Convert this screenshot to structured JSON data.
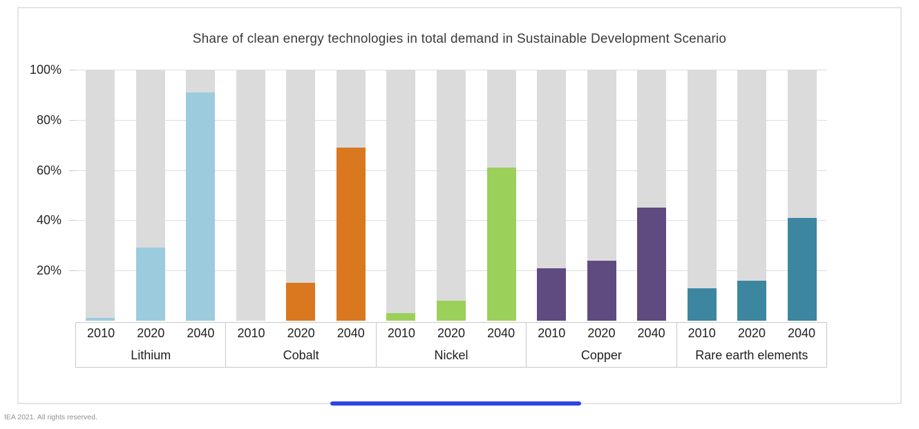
{
  "page": {
    "footer": "IEA 2021. All rights reserved."
  },
  "chart_data": {
    "type": "bar",
    "title": "Share of clean energy technologies in total demand in Sustainable Development Scenario",
    "categories": [
      "Lithium",
      "Cobalt",
      "Nickel",
      "Copper",
      "Rare earth elements"
    ],
    "x_sublabels_per_group": [
      "2010",
      "2020",
      "2040"
    ],
    "unit": "%",
    "ylim": [
      0,
      100
    ],
    "y_tick_labels": [
      "100%",
      "80%",
      "60%",
      "40%",
      "20%"
    ],
    "y_tick_values": [
      100,
      80,
      60,
      40,
      20
    ],
    "grid": true,
    "legend": "none",
    "background_bar_value": 100,
    "background_bar_color": "#dbdbdb",
    "series": [
      {
        "name": "Lithium",
        "color": "#9ccbdd",
        "years": [
          "2010",
          "2020",
          "2040"
        ],
        "values": [
          1,
          29,
          91
        ]
      },
      {
        "name": "Cobalt",
        "color": "#d9781f",
        "years": [
          "2010",
          "2020",
          "2040"
        ],
        "values": [
          0,
          15,
          69
        ]
      },
      {
        "name": "Nickel",
        "color": "#9bd05a",
        "years": [
          "2010",
          "2020",
          "2040"
        ],
        "values": [
          3,
          8,
          61
        ]
      },
      {
        "name": "Copper",
        "color": "#5f4b80",
        "years": [
          "2010",
          "2020",
          "2040"
        ],
        "values": [
          21,
          24,
          45
        ]
      },
      {
        "name": "Rare earth elements",
        "color": "#3c86a0",
        "years": [
          "2010",
          "2020",
          "2040"
        ],
        "values": [
          13,
          16,
          41
        ]
      }
    ]
  },
  "decorations": {
    "scrollbar_thumb_color": "#2b46e3"
  }
}
